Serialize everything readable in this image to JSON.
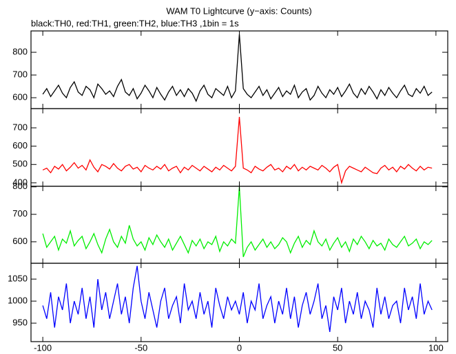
{
  "chart_data": {
    "type": "line",
    "title": "WAM T0 Lightcurve (y−axis: Counts)",
    "subtitle": "black:TH0, red:TH1, green:TH2, blue:TH3 ,1bin = 1s",
    "x": [
      -100,
      -98,
      -96,
      -94,
      -92,
      -90,
      -88,
      -86,
      -84,
      -82,
      -80,
      -78,
      -76,
      -74,
      -72,
      -70,
      -68,
      -66,
      -64,
      -62,
      -60,
      -58,
      -56,
      -54,
      -52,
      -50,
      -48,
      -46,
      -44,
      -42,
      -40,
      -38,
      -36,
      -34,
      -32,
      -30,
      -28,
      -26,
      -24,
      -22,
      -20,
      -18,
      -16,
      -14,
      -12,
      -10,
      -8,
      -6,
      -4,
      -2,
      0,
      2,
      4,
      6,
      8,
      10,
      12,
      14,
      16,
      18,
      20,
      22,
      24,
      26,
      28,
      30,
      32,
      34,
      36,
      38,
      40,
      42,
      44,
      46,
      48,
      50,
      52,
      54,
      56,
      58,
      60,
      62,
      64,
      66,
      68,
      70,
      72,
      74,
      76,
      78,
      80,
      82,
      84,
      86,
      88,
      90,
      92,
      94,
      96,
      98
    ],
    "xlim": [
      -106,
      106
    ],
    "xticks": [
      -100,
      -50,
      0,
      50,
      100
    ],
    "panels": [
      {
        "ylim": [
          552,
          894
        ],
        "yticks": [
          600,
          700,
          800
        ],
        "color": "#000000",
        "values": [
          615,
          640,
          605,
          630,
          655,
          620,
          600,
          645,
          670,
          625,
          610,
          650,
          635,
          600,
          660,
          640,
          615,
          630,
          605,
          650,
          680,
          625,
          610,
          640,
          595,
          620,
          655,
          630,
          600,
          645,
          615,
          590,
          625,
          650,
          610,
          635,
          605,
          640,
          620,
          585,
          630,
          655,
          615,
          600,
          640,
          625,
          610,
          650,
          600,
          630,
          880,
          640,
          615,
          600,
          625,
          650,
          610,
          635,
          595,
          620,
          645,
          605,
          630,
          615,
          655,
          600,
          625,
          640,
          590,
          610,
          650,
          620,
          600,
          635,
          615,
          645,
          605,
          630,
          660,
          620,
          600,
          640,
          615,
          650,
          625,
          595,
          635,
          610,
          645,
          620,
          600,
          630,
          655,
          615,
          605,
          640,
          620,
          650,
          610,
          625
        ]
      },
      {
        "ylim": [
          381,
          805
        ],
        "yticks": [
          400,
          500,
          600,
          700
        ],
        "color": "#ff0000",
        "values": [
          470,
          480,
          455,
          490,
          475,
          500,
          465,
          485,
          510,
          480,
          495,
          470,
          525,
          485,
          460,
          500,
          490,
          475,
          505,
          480,
          465,
          490,
          500,
          475,
          485,
          460,
          495,
          480,
          470,
          490,
          475,
          500,
          465,
          480,
          490,
          455,
          485,
          470,
          495,
          480,
          465,
          490,
          475,
          460,
          485,
          470,
          495,
          480,
          465,
          490,
          760,
          480,
          470,
          455,
          490,
          475,
          465,
          485,
          500,
          470,
          480,
          460,
          490,
          475,
          500,
          465,
          485,
          470,
          490,
          480,
          470,
          495,
          480,
          460,
          485,
          500,
          400,
          465,
          490,
          480,
          470,
          460,
          485,
          470,
          455,
          450,
          480,
          495,
          470,
          485,
          460,
          490,
          475,
          500,
          480,
          465,
          490,
          470,
          485,
          480
        ]
      },
      {
        "ylim": [
          522,
          802
        ],
        "yticks": [
          600,
          700,
          800
        ],
        "color": "#00ee00",
        "values": [
          630,
          580,
          600,
          620,
          570,
          610,
          595,
          640,
          585,
          605,
          620,
          575,
          600,
          630,
          590,
          560,
          610,
          645,
          600,
          580,
          620,
          595,
          660,
          610,
          585,
          600,
          570,
          615,
          590,
          625,
          600,
          580,
          610,
          570,
          595,
          620,
          590,
          560,
          605,
          585,
          610,
          575,
          600,
          590,
          620,
          565,
          600,
          585,
          610,
          595,
          800,
          545,
          580,
          600,
          570,
          590,
          610,
          580,
          600,
          575,
          590,
          615,
          600,
          560,
          595,
          620,
          580,
          605,
          590,
          640,
          600,
          585,
          610,
          570,
          595,
          615,
          580,
          600,
          565,
          610,
          590,
          620,
          600,
          575,
          605,
          585,
          595,
          570,
          610,
          590,
          580,
          600,
          620,
          585,
          595,
          610,
          575,
          600,
          590,
          605
        ]
      },
      {
        "ylim": [
          908,
          1086
        ],
        "yticks": [
          950,
          1000,
          1050
        ],
        "color": "#0000ff",
        "values": [
          990,
          960,
          1020,
          940,
          1010,
          980,
          1040,
          950,
          1000,
          970,
          1030,
          960,
          1010,
          940,
          1050,
          980,
          1020,
          960,
          1000,
          1040,
          970,
          1010,
          950,
          1030,
          1080,
          1000,
          960,
          1020,
          980,
          940,
          1000,
          1030,
          960,
          990,
          1010,
          950,
          1040,
          980,
          1000,
          960,
          1020,
          970,
          1000,
          940,
          1030,
          990,
          960,
          1010,
          980,
          1000,
          970,
          1020,
          950,
          1000,
          980,
          1040,
          960,
          990,
          1010,
          950,
          1000,
          970,
          1030,
          960,
          1010,
          940,
          990,
          1020,
          970,
          1000,
          1040,
          960,
          990,
          930,
          1010,
          980,
          1030,
          950,
          1000,
          970,
          1020,
          960,
          1000,
          980,
          940,
          1030,
          970,
          1010,
          960,
          990,
          1000,
          950,
          1030,
          980,
          1010,
          960,
          1040,
          970,
          1000,
          980
        ]
      }
    ]
  }
}
